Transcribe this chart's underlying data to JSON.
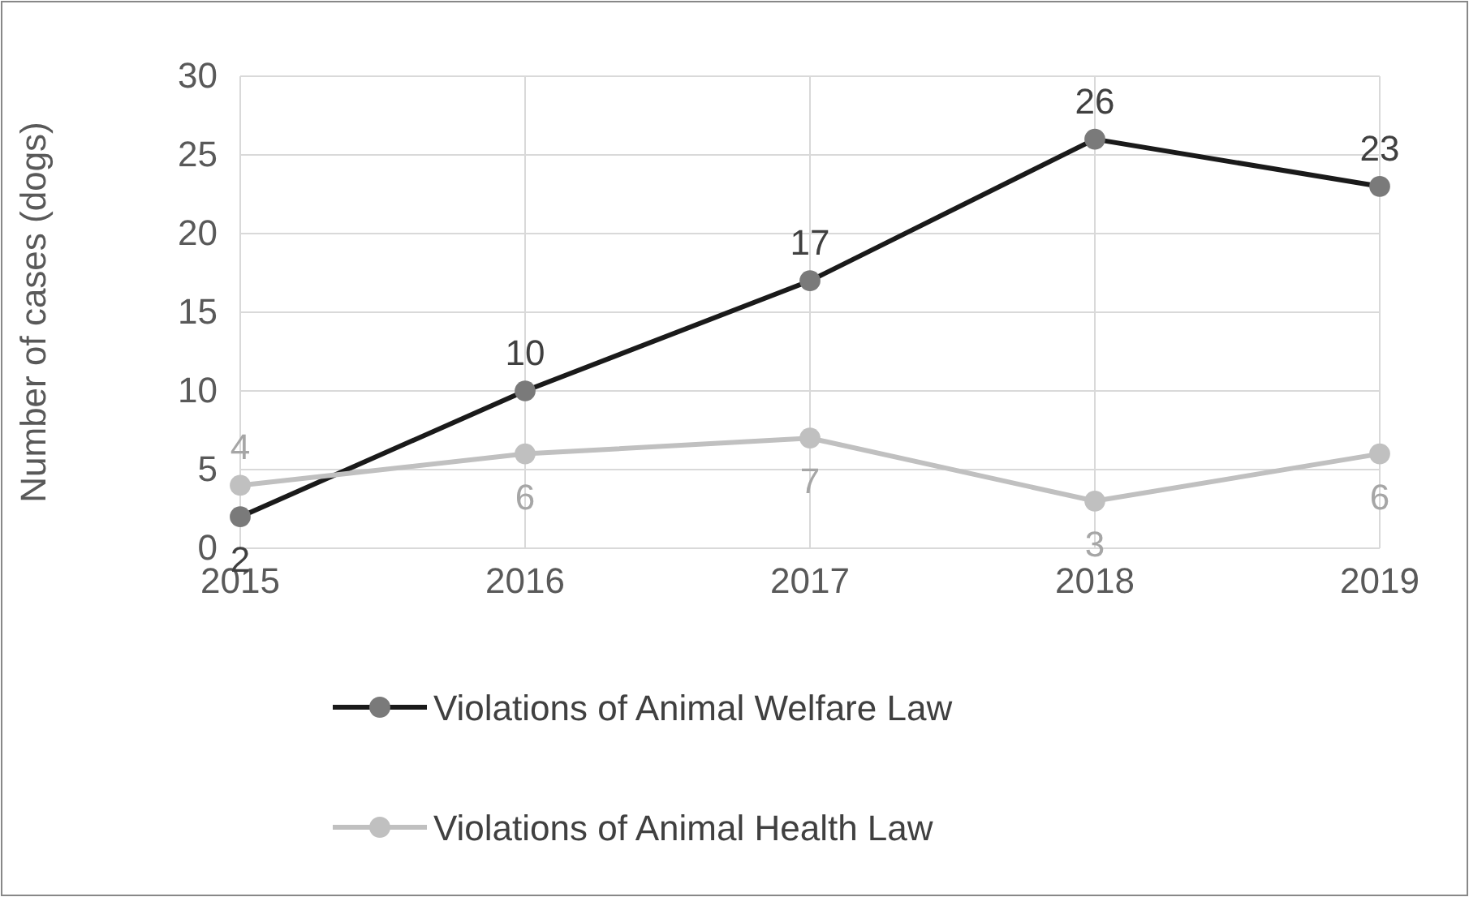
{
  "chart_data": {
    "type": "line",
    "ylabel": "Number of cases (dogs)",
    "x": [
      2015,
      2016,
      2017,
      2018,
      2019
    ],
    "xlim": [
      2015,
      2019
    ],
    "xticks": [
      2015,
      2016,
      2017,
      2018,
      2019
    ],
    "ylim": [
      0,
      30
    ],
    "yticks": [
      0,
      5,
      10,
      15,
      20,
      25,
      30
    ],
    "grid": true,
    "legend": "bottom",
    "marker": "circle",
    "line_style": "solid",
    "data_labels": true,
    "series": [
      {
        "name": "Violations of Animal Welfare Law",
        "color": "#1a1a1a",
        "values": [
          2,
          10,
          17,
          26,
          23
        ]
      },
      {
        "name": "Violations of Animal Health Law",
        "color": "#c0c0c0",
        "values": [
          4,
          6,
          7,
          3,
          6
        ]
      }
    ]
  }
}
